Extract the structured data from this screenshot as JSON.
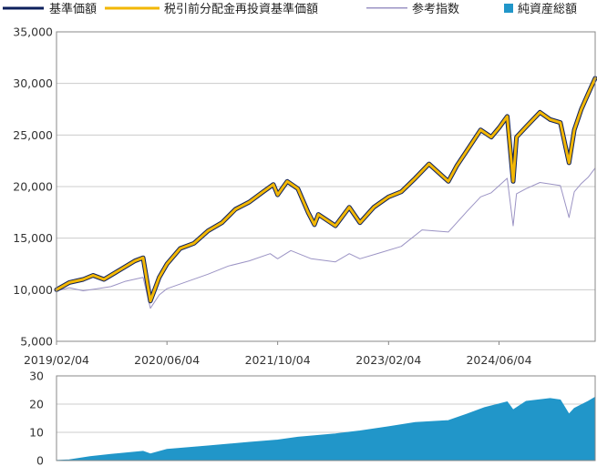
{
  "legend": [
    {
      "label": "基準価額",
      "color": "#0d1f5c",
      "marker": "line"
    },
    {
      "label": "税引前分配金再投資基準価額",
      "color": "#f2b705",
      "marker": "line"
    },
    {
      "label": "参考指数",
      "color": "#9b93c4",
      "marker": "line"
    },
    {
      "label": "純資産総額",
      "color": "#2196c9",
      "marker": "square"
    }
  ],
  "chart_data": [
    {
      "type": "line",
      "x_tick_labels": [
        "2019/02/04",
        "2020/06/04",
        "2021/10/04",
        "2023/02/04",
        "2024/06/04"
      ],
      "y_tick_labels": [
        "35,000",
        "30,000",
        "25,000",
        "20,000",
        "15,000",
        "10,000",
        "5,000"
      ],
      "ylim": [
        5000,
        35000
      ],
      "xlim": [
        "2019/02/04",
        "2025/08/01"
      ],
      "grid": true,
      "series": [
        {
          "name": "基準価額",
          "color": "#0d1f5c",
          "points": [
            [
              "2019/02/04",
              10000
            ],
            [
              "2019/04/01",
              10700
            ],
            [
              "2019/06/01",
              11000
            ],
            [
              "2019/07/15",
              11400
            ],
            [
              "2019/09/01",
              11000
            ],
            [
              "2019/11/01",
              11800
            ],
            [
              "2020/01/15",
              12800
            ],
            [
              "2020/02/20",
              13100
            ],
            [
              "2020/03/23",
              8900
            ],
            [
              "2020/05/01",
              11200
            ],
            [
              "2020/06/04",
              12500
            ],
            [
              "2020/08/01",
              14000
            ],
            [
              "2020/10/01",
              14500
            ],
            [
              "2020/12/01",
              15700
            ],
            [
              "2021/02/01",
              16500
            ],
            [
              "2021/04/01",
              17800
            ],
            [
              "2021/06/01",
              18500
            ],
            [
              "2021/08/01",
              19500
            ],
            [
              "2021/09/15",
              20200
            ],
            [
              "2021/10/04",
              19200
            ],
            [
              "2021/11/15",
              20500
            ],
            [
              "2022/01/01",
              19800
            ],
            [
              "2022/02/15",
              17500
            ],
            [
              "2022/03/15",
              16300
            ],
            [
              "2022/04/01",
              17300
            ],
            [
              "2022/06/15",
              16200
            ],
            [
              "2022/08/15",
              18000
            ],
            [
              "2022/10/01",
              16500
            ],
            [
              "2022/12/01",
              18000
            ],
            [
              "2023/02/04",
              19000
            ],
            [
              "2023/04/01",
              19500
            ],
            [
              "2023/06/01",
              20800
            ],
            [
              "2023/08/01",
              22200
            ],
            [
              "2023/10/25",
              20500
            ],
            [
              "2023/12/01",
              22000
            ],
            [
              "2024/01/15",
              23500
            ],
            [
              "2024/03/15",
              25500
            ],
            [
              "2024/05/01",
              24800
            ],
            [
              "2024/06/04",
              25700
            ],
            [
              "2024/07/10",
              26800
            ],
            [
              "2024/08/05",
              20500
            ],
            [
              "2024/08/20",
              24800
            ],
            [
              "2024/10/01",
              25800
            ],
            [
              "2024/12/01",
              27200
            ],
            [
              "2025/01/15",
              26500
            ],
            [
              "2025/03/01",
              26200
            ],
            [
              "2025/04/08",
              22300
            ],
            [
              "2025/05/01",
              25500
            ],
            [
              "2025/06/01",
              27500
            ],
            [
              "2025/07/01",
              29000
            ],
            [
              "2025/08/01",
              30500
            ]
          ]
        },
        {
          "name": "税引前分配金再投資基準価額",
          "color": "#f2b705",
          "points": [
            [
              "2019/02/04",
              10000
            ],
            [
              "2019/04/01",
              10700
            ],
            [
              "2019/06/01",
              11000
            ],
            [
              "2019/07/15",
              11400
            ],
            [
              "2019/09/01",
              11000
            ],
            [
              "2019/11/01",
              11800
            ],
            [
              "2020/01/15",
              12800
            ],
            [
              "2020/02/20",
              13100
            ],
            [
              "2020/03/23",
              8900
            ],
            [
              "2020/05/01",
              11200
            ],
            [
              "2020/06/04",
              12500
            ],
            [
              "2020/08/01",
              14000
            ],
            [
              "2020/10/01",
              14500
            ],
            [
              "2020/12/01",
              15700
            ],
            [
              "2021/02/01",
              16500
            ],
            [
              "2021/04/01",
              17800
            ],
            [
              "2021/06/01",
              18500
            ],
            [
              "2021/08/01",
              19500
            ],
            [
              "2021/09/15",
              20200
            ],
            [
              "2021/10/04",
              19200
            ],
            [
              "2021/11/15",
              20500
            ],
            [
              "2022/01/01",
              19800
            ],
            [
              "2022/02/15",
              17500
            ],
            [
              "2022/03/15",
              16300
            ],
            [
              "2022/04/01",
              17300
            ],
            [
              "2022/06/15",
              16200
            ],
            [
              "2022/08/15",
              18000
            ],
            [
              "2022/10/01",
              16500
            ],
            [
              "2022/12/01",
              18000
            ],
            [
              "2023/02/04",
              19000
            ],
            [
              "2023/04/01",
              19500
            ],
            [
              "2023/06/01",
              20800
            ],
            [
              "2023/08/01",
              22200
            ],
            [
              "2023/10/25",
              20500
            ],
            [
              "2023/12/01",
              22000
            ],
            [
              "2024/01/15",
              23500
            ],
            [
              "2024/03/15",
              25500
            ],
            [
              "2024/05/01",
              24800
            ],
            [
              "2024/06/04",
              25700
            ],
            [
              "2024/07/10",
              26800
            ],
            [
              "2024/08/05",
              20500
            ],
            [
              "2024/08/20",
              24800
            ],
            [
              "2024/10/01",
              25800
            ],
            [
              "2024/12/01",
              27200
            ],
            [
              "2025/01/15",
              26500
            ],
            [
              "2025/03/01",
              26200
            ],
            [
              "2025/04/08",
              22300
            ],
            [
              "2025/05/01",
              25500
            ],
            [
              "2025/06/01",
              27500
            ],
            [
              "2025/07/01",
              29000
            ],
            [
              "2025/08/01",
              30500
            ]
          ]
        },
        {
          "name": "参考指数",
          "color": "#9b93c4",
          "points": [
            [
              "2019/02/04",
              9900
            ],
            [
              "2019/04/01",
              10200
            ],
            [
              "2019/06/01",
              9900
            ],
            [
              "2019/08/01",
              10100
            ],
            [
              "2019/10/01",
              10300
            ],
            [
              "2019/12/01",
              10800
            ],
            [
              "2020/02/20",
              11200
            ],
            [
              "2020/03/23",
              8200
            ],
            [
              "2020/05/01",
              9500
            ],
            [
              "2020/06/04",
              10100
            ],
            [
              "2020/09/01",
              10800
            ],
            [
              "2020/12/01",
              11500
            ],
            [
              "2021/03/01",
              12300
            ],
            [
              "2021/06/01",
              12800
            ],
            [
              "2021/09/01",
              13500
            ],
            [
              "2021/10/04",
              13000
            ],
            [
              "2021/12/01",
              13800
            ],
            [
              "2022/03/01",
              13000
            ],
            [
              "2022/06/15",
              12700
            ],
            [
              "2022/08/15",
              13500
            ],
            [
              "2022/10/01",
              13000
            ],
            [
              "2023/01/01",
              13600
            ],
            [
              "2023/04/01",
              14200
            ],
            [
              "2023/07/01",
              15800
            ],
            [
              "2023/10/25",
              15600
            ],
            [
              "2024/01/15",
              17600
            ],
            [
              "2024/03/15",
              19000
            ],
            [
              "2024/05/01",
              19400
            ],
            [
              "2024/07/10",
              20800
            ],
            [
              "2024/08/05",
              16200
            ],
            [
              "2024/08/20",
              19300
            ],
            [
              "2024/10/01",
              19800
            ],
            [
              "2024/12/01",
              20400
            ],
            [
              "2025/03/01",
              20100
            ],
            [
              "2025/04/08",
              17000
            ],
            [
              "2025/05/01",
              19500
            ],
            [
              "2025/06/01",
              20300
            ],
            [
              "2025/07/01",
              20900
            ],
            [
              "2025/08/01",
              21800
            ]
          ]
        }
      ]
    },
    {
      "type": "area",
      "x_tick_labels": [],
      "y_tick_labels": [
        "30",
        "20",
        "10",
        "0"
      ],
      "ylim": [
        0,
        30
      ],
      "grid": true,
      "series": [
        {
          "name": "純資産総額",
          "color": "#2196c9",
          "points": [
            [
              "2019/02/04",
              0.1
            ],
            [
              "2019/04/01",
              0.3
            ],
            [
              "2019/07/01",
              1.4
            ],
            [
              "2019/10/01",
              2.2
            ],
            [
              "2020/02/20",
              3.3
            ],
            [
              "2020/03/23",
              2.4
            ],
            [
              "2020/06/04",
              4.0
            ],
            [
              "2020/12/01",
              5.2
            ],
            [
              "2021/06/01",
              6.5
            ],
            [
              "2021/10/04",
              7.3
            ],
            [
              "2022/01/01",
              8.3
            ],
            [
              "2022/06/15",
              9.5
            ],
            [
              "2022/10/01",
              10.5
            ],
            [
              "2023/02/04",
              12.0
            ],
            [
              "2023/06/01",
              13.5
            ],
            [
              "2023/10/25",
              14.2
            ],
            [
              "2024/01/15",
              16.5
            ],
            [
              "2024/04/01",
              18.8
            ],
            [
              "2024/07/10",
              20.8
            ],
            [
              "2024/08/05",
              18.0
            ],
            [
              "2024/10/01",
              21.0
            ],
            [
              "2025/01/15",
              22.0
            ],
            [
              "2025/03/01",
              21.5
            ],
            [
              "2025/04/08",
              16.5
            ],
            [
              "2025/05/01",
              18.5
            ],
            [
              "2025/07/01",
              21.0
            ],
            [
              "2025/08/01",
              22.5
            ]
          ]
        }
      ]
    }
  ]
}
